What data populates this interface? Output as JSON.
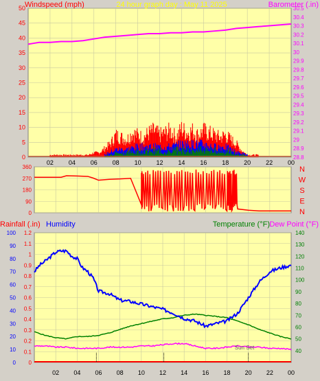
{
  "header": {
    "title": "24 hour graph day : May 11 2025",
    "left_label": "Windspeed (mph)",
    "right_label": "Barometer (.in)"
  },
  "colors": {
    "background": "#d4d0c8",
    "plot_bg": "#ffffa8",
    "grid": "#c8c8a0",
    "wind": "#ff0000",
    "gust": "#ff0000",
    "wind_blue": "#0000ff",
    "wind_green": "#008000",
    "barometer": "#ff00ff",
    "wind_dir": "#ff0000",
    "humidity": "#0000ff",
    "temperature": "#008000",
    "dewpoint": "#ff00ff",
    "rain": "#ff0000",
    "title": "#ffff00",
    "tick_text": "#ff0000",
    "temp_text": "#008000",
    "hum_text": "#0000ff"
  },
  "x_ticks": [
    "02",
    "04",
    "06",
    "08",
    "10",
    "12",
    "14",
    "16",
    "18",
    "20",
    "22",
    "00"
  ],
  "chart_data": [
    {
      "type": "line",
      "panel": "wind-barometer",
      "title": "24 hour graph day : May 11 2025",
      "xlabel": "",
      "ylabel": "Windspeed (mph)",
      "ylabel_right": "Barometer (.in)",
      "x_range": [
        0,
        24
      ],
      "y_range": [
        0,
        50
      ],
      "y_ticks": [
        0,
        5,
        10,
        15,
        20,
        25,
        30,
        35,
        40,
        45,
        50
      ],
      "y2_range": [
        28.8,
        30.5
      ],
      "y2_ticks": [
        "28.8",
        "28.9",
        "29",
        "29.1",
        "29.2",
        "29.3",
        "29.4",
        "29.5",
        "29.6",
        "29.7",
        "29.8",
        "29.9",
        "30",
        "30.1",
        "30.2",
        "30.3",
        "30.4",
        "30.5"
      ],
      "series": [
        {
          "name": "Barometer",
          "axis": "right",
          "x": [
            0,
            0.5,
            1,
            2,
            3,
            4,
            5,
            6,
            7,
            8,
            9,
            10,
            11,
            12,
            13,
            14,
            15,
            16,
            17,
            18,
            19,
            20,
            21,
            22,
            23,
            24
          ],
          "y": [
            30.09,
            30.1,
            30.11,
            30.11,
            30.12,
            30.12,
            30.13,
            30.15,
            30.17,
            30.18,
            30.19,
            30.2,
            30.21,
            30.21,
            30.22,
            30.22,
            30.23,
            30.23,
            30.24,
            30.25,
            30.27,
            30.28,
            30.29,
            30.3,
            30.31,
            30.32
          ]
        },
        {
          "name": "Wind gust",
          "axis": "left",
          "x": [
            2,
            3,
            4,
            5,
            5.5,
            6,
            6.5,
            7,
            7.5,
            8,
            8.5,
            9,
            9.5,
            10,
            10.5,
            11,
            11.5,
            12,
            12.5,
            13,
            13.5,
            14,
            14.5,
            15,
            15.5,
            16,
            16.5,
            17,
            17.5,
            18,
            18.5,
            19,
            19.5,
            20,
            21
          ],
          "y": [
            1,
            1,
            1,
            1,
            1,
            2,
            2,
            4,
            6,
            10,
            9,
            8,
            11,
            10,
            9,
            11,
            12,
            10,
            11,
            12,
            9,
            13,
            11,
            12,
            10,
            12,
            11,
            10,
            9,
            10,
            8,
            6,
            3,
            1,
            1
          ]
        },
        {
          "name": "Wind average",
          "axis": "left",
          "x": [
            7,
            8,
            9,
            10,
            11,
            12,
            13,
            14,
            15,
            16,
            17,
            18,
            19,
            20
          ],
          "y": [
            1,
            3,
            3,
            4,
            4,
            4,
            4,
            5,
            5,
            5,
            4,
            4,
            2,
            1
          ]
        }
      ]
    },
    {
      "type": "line",
      "panel": "wind-direction",
      "title": "",
      "ylabel": "",
      "compass_labels": [
        "N",
        "W",
        "S",
        "E",
        "N"
      ],
      "y_range": [
        0,
        360
      ],
      "y_ticks": [
        0,
        90,
        180,
        270,
        360
      ],
      "series": [
        {
          "name": "Wind direction",
          "x": [
            0,
            2.5,
            3,
            4,
            5,
            5.5,
            6,
            7,
            8,
            9,
            10,
            10.1,
            11,
            12,
            13,
            14,
            15,
            16,
            17,
            18,
            18.5,
            19,
            20,
            21,
            22,
            23,
            24
          ],
          "y": [
            278,
            278,
            290,
            288,
            285,
            272,
            255,
            262,
            265,
            270,
            262,
            60,
            300,
            80,
            320,
            60,
            300,
            50,
            340,
            70,
            320,
            30,
            20,
            15,
            15,
            15,
            15
          ]
        }
      ]
    },
    {
      "type": "line",
      "panel": "temperature-humidity",
      "title": "",
      "labels": {
        "rainfall": "Rainfall (.in)",
        "humidity": "Humidity",
        "temperature": "Temperature (°F)",
        "dewpoint": "Dew Point (°F)"
      },
      "annotation": "Sun Set",
      "rain_range": [
        0,
        1.2
      ],
      "rain_ticks": [
        "0",
        "0.1",
        "0.2",
        "0.3",
        "0.4",
        "0.5",
        "0.6",
        "0.7",
        "0.8",
        "0.9",
        "1",
        "1.1",
        "1.2"
      ],
      "hum_range": [
        0,
        100
      ],
      "hum_ticks": [
        0,
        10,
        20,
        30,
        40,
        50,
        60,
        70,
        80,
        90,
        100
      ],
      "temp_range": [
        30,
        140
      ],
      "temp_ticks": [
        40,
        50,
        60,
        70,
        80,
        90,
        100,
        110,
        120,
        130,
        140
      ],
      "series": [
        {
          "name": "Humidity",
          "axis": "humidity",
          "x": [
            0,
            0.5,
            1,
            2,
            2.5,
            3,
            3.5,
            4,
            4.5,
            5,
            5.5,
            6,
            7,
            8,
            9,
            10,
            11,
            12,
            13,
            14,
            15,
            16,
            17,
            18,
            19,
            20,
            21,
            22,
            23,
            24
          ],
          "y": [
            70,
            75,
            78,
            85,
            86,
            86,
            82,
            80,
            73,
            70,
            65,
            55,
            53,
            48,
            47,
            45,
            43,
            41,
            38,
            34,
            32,
            28,
            30,
            32,
            38,
            50,
            62,
            70,
            73,
            75
          ]
        },
        {
          "name": "Temperature",
          "axis": "temp",
          "x": [
            0,
            1,
            2,
            3,
            4,
            5,
            6,
            7,
            8,
            9,
            10,
            11,
            12,
            13,
            14,
            15,
            16,
            17,
            18,
            19,
            20,
            21,
            22,
            23,
            24
          ],
          "y": [
            56,
            53,
            51,
            50,
            52,
            52,
            53,
            55,
            58,
            61,
            63,
            65,
            67,
            68,
            70,
            71,
            70,
            69,
            68,
            65,
            62,
            58,
            55,
            52,
            50
          ]
        },
        {
          "name": "Dew Point",
          "axis": "temp",
          "x": [
            0,
            1,
            2,
            3,
            4,
            5,
            6,
            7,
            8,
            9,
            10,
            11,
            12,
            13,
            14,
            15,
            16,
            17,
            18,
            19,
            20,
            21,
            22,
            23,
            24
          ],
          "y": [
            44,
            44,
            43,
            43,
            42,
            42,
            42,
            43,
            43,
            43,
            44,
            44,
            45,
            46,
            46,
            44,
            42,
            42,
            43,
            44,
            43,
            43,
            42,
            42,
            41
          ]
        }
      ]
    }
  ]
}
